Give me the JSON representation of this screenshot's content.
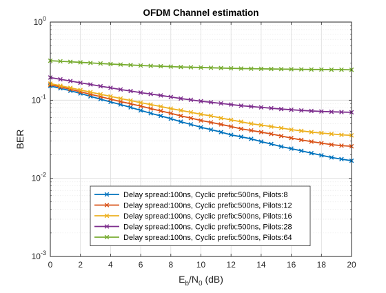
{
  "chart_data": {
    "type": "line",
    "title": "OFDM Channel estimation",
    "xlabel": "E_b/N_0 (dB)",
    "ylabel": "BER",
    "yscale": "log",
    "xlim": [
      0,
      20
    ],
    "ylim": [
      0.001,
      1
    ],
    "grid": true,
    "minor_grid": true,
    "legend_position": "bottom-center",
    "x_ticks": [
      "0",
      "2",
      "4",
      "6",
      "8",
      "10",
      "12",
      "14",
      "16",
      "18",
      "20"
    ],
    "y_ticks": [
      {
        "value": 1,
        "mantissa": "10",
        "exponent": "0"
      },
      {
        "value": 0.1,
        "mantissa": "10",
        "exponent": "-1"
      },
      {
        "value": 0.01,
        "mantissa": "10",
        "exponent": "-2"
      },
      {
        "value": 0.001,
        "mantissa": "10",
        "exponent": "-3"
      }
    ],
    "x": [
      0,
      0.6667,
      1.3333,
      2,
      2.6667,
      3.3333,
      4,
      4.6667,
      5.3333,
      6,
      6.6667,
      7.3333,
      8,
      8.6667,
      9.3333,
      10,
      10.6667,
      11.3333,
      12,
      12.6667,
      13.3333,
      14,
      14.6667,
      15.3333,
      16,
      16.6667,
      17.3333,
      18,
      18.6667,
      19.3333,
      20
    ],
    "series": [
      {
        "name": "Delay spread:100ns, Cyclic prefix:500ns, Pilots:8",
        "color": "#0072BD",
        "values": [
          0.152,
          0.142,
          0.132,
          0.122,
          0.112,
          0.103,
          0.095,
          0.088,
          0.081,
          0.074,
          0.068,
          0.063,
          0.058,
          0.053,
          0.049,
          0.045,
          0.042,
          0.039,
          0.036,
          0.034,
          0.032,
          0.0295,
          0.0275,
          0.0255,
          0.024,
          0.0225,
          0.021,
          0.0197,
          0.0185,
          0.0176,
          0.0168
        ]
      },
      {
        "name": "Delay spread:100ns, Cyclic prefix:500ns, Pilots:12",
        "color": "#D95319",
        "values": [
          0.158,
          0.148,
          0.138,
          0.128,
          0.119,
          0.111,
          0.103,
          0.096,
          0.09,
          0.084,
          0.078,
          0.073,
          0.068,
          0.063,
          0.059,
          0.055,
          0.052,
          0.049,
          0.046,
          0.043,
          0.041,
          0.039,
          0.037,
          0.0348,
          0.0328,
          0.031,
          0.0295,
          0.0282,
          0.027,
          0.0262,
          0.0257
        ]
      },
      {
        "name": "Delay spread:100ns, Cyclic prefix:500ns, Pilots:16",
        "color": "#EDB120",
        "values": [
          0.163,
          0.153,
          0.144,
          0.135,
          0.127,
          0.119,
          0.112,
          0.105,
          0.099,
          0.093,
          0.088,
          0.083,
          0.078,
          0.074,
          0.07,
          0.066,
          0.063,
          0.059,
          0.056,
          0.053,
          0.05,
          0.048,
          0.046,
          0.044,
          0.042,
          0.0405,
          0.039,
          0.038,
          0.037,
          0.036,
          0.0355
        ]
      },
      {
        "name": "Delay spread:100ns, Cyclic prefix:500ns, Pilots:28",
        "color": "#7E2F8E",
        "values": [
          0.195,
          0.185,
          0.176,
          0.167,
          0.159,
          0.151,
          0.144,
          0.137,
          0.131,
          0.125,
          0.12,
          0.115,
          0.11,
          0.105,
          0.101,
          0.097,
          0.094,
          0.091,
          0.088,
          0.085,
          0.083,
          0.081,
          0.079,
          0.077,
          0.0755,
          0.074,
          0.0728,
          0.0718,
          0.071,
          0.0705,
          0.07
        ]
      },
      {
        "name": "Delay spread:100ns, Cyclic prefix:500ns, Pilots:64",
        "color": "#77AC30",
        "values": [
          0.32,
          0.315,
          0.31,
          0.305,
          0.3,
          0.295,
          0.29,
          0.286,
          0.282,
          0.278,
          0.275,
          0.272,
          0.269,
          0.266,
          0.264,
          0.262,
          0.26,
          0.258,
          0.256,
          0.254,
          0.253,
          0.252,
          0.251,
          0.25,
          0.249,
          0.248,
          0.247,
          0.247,
          0.246,
          0.246,
          0.245
        ]
      }
    ]
  }
}
